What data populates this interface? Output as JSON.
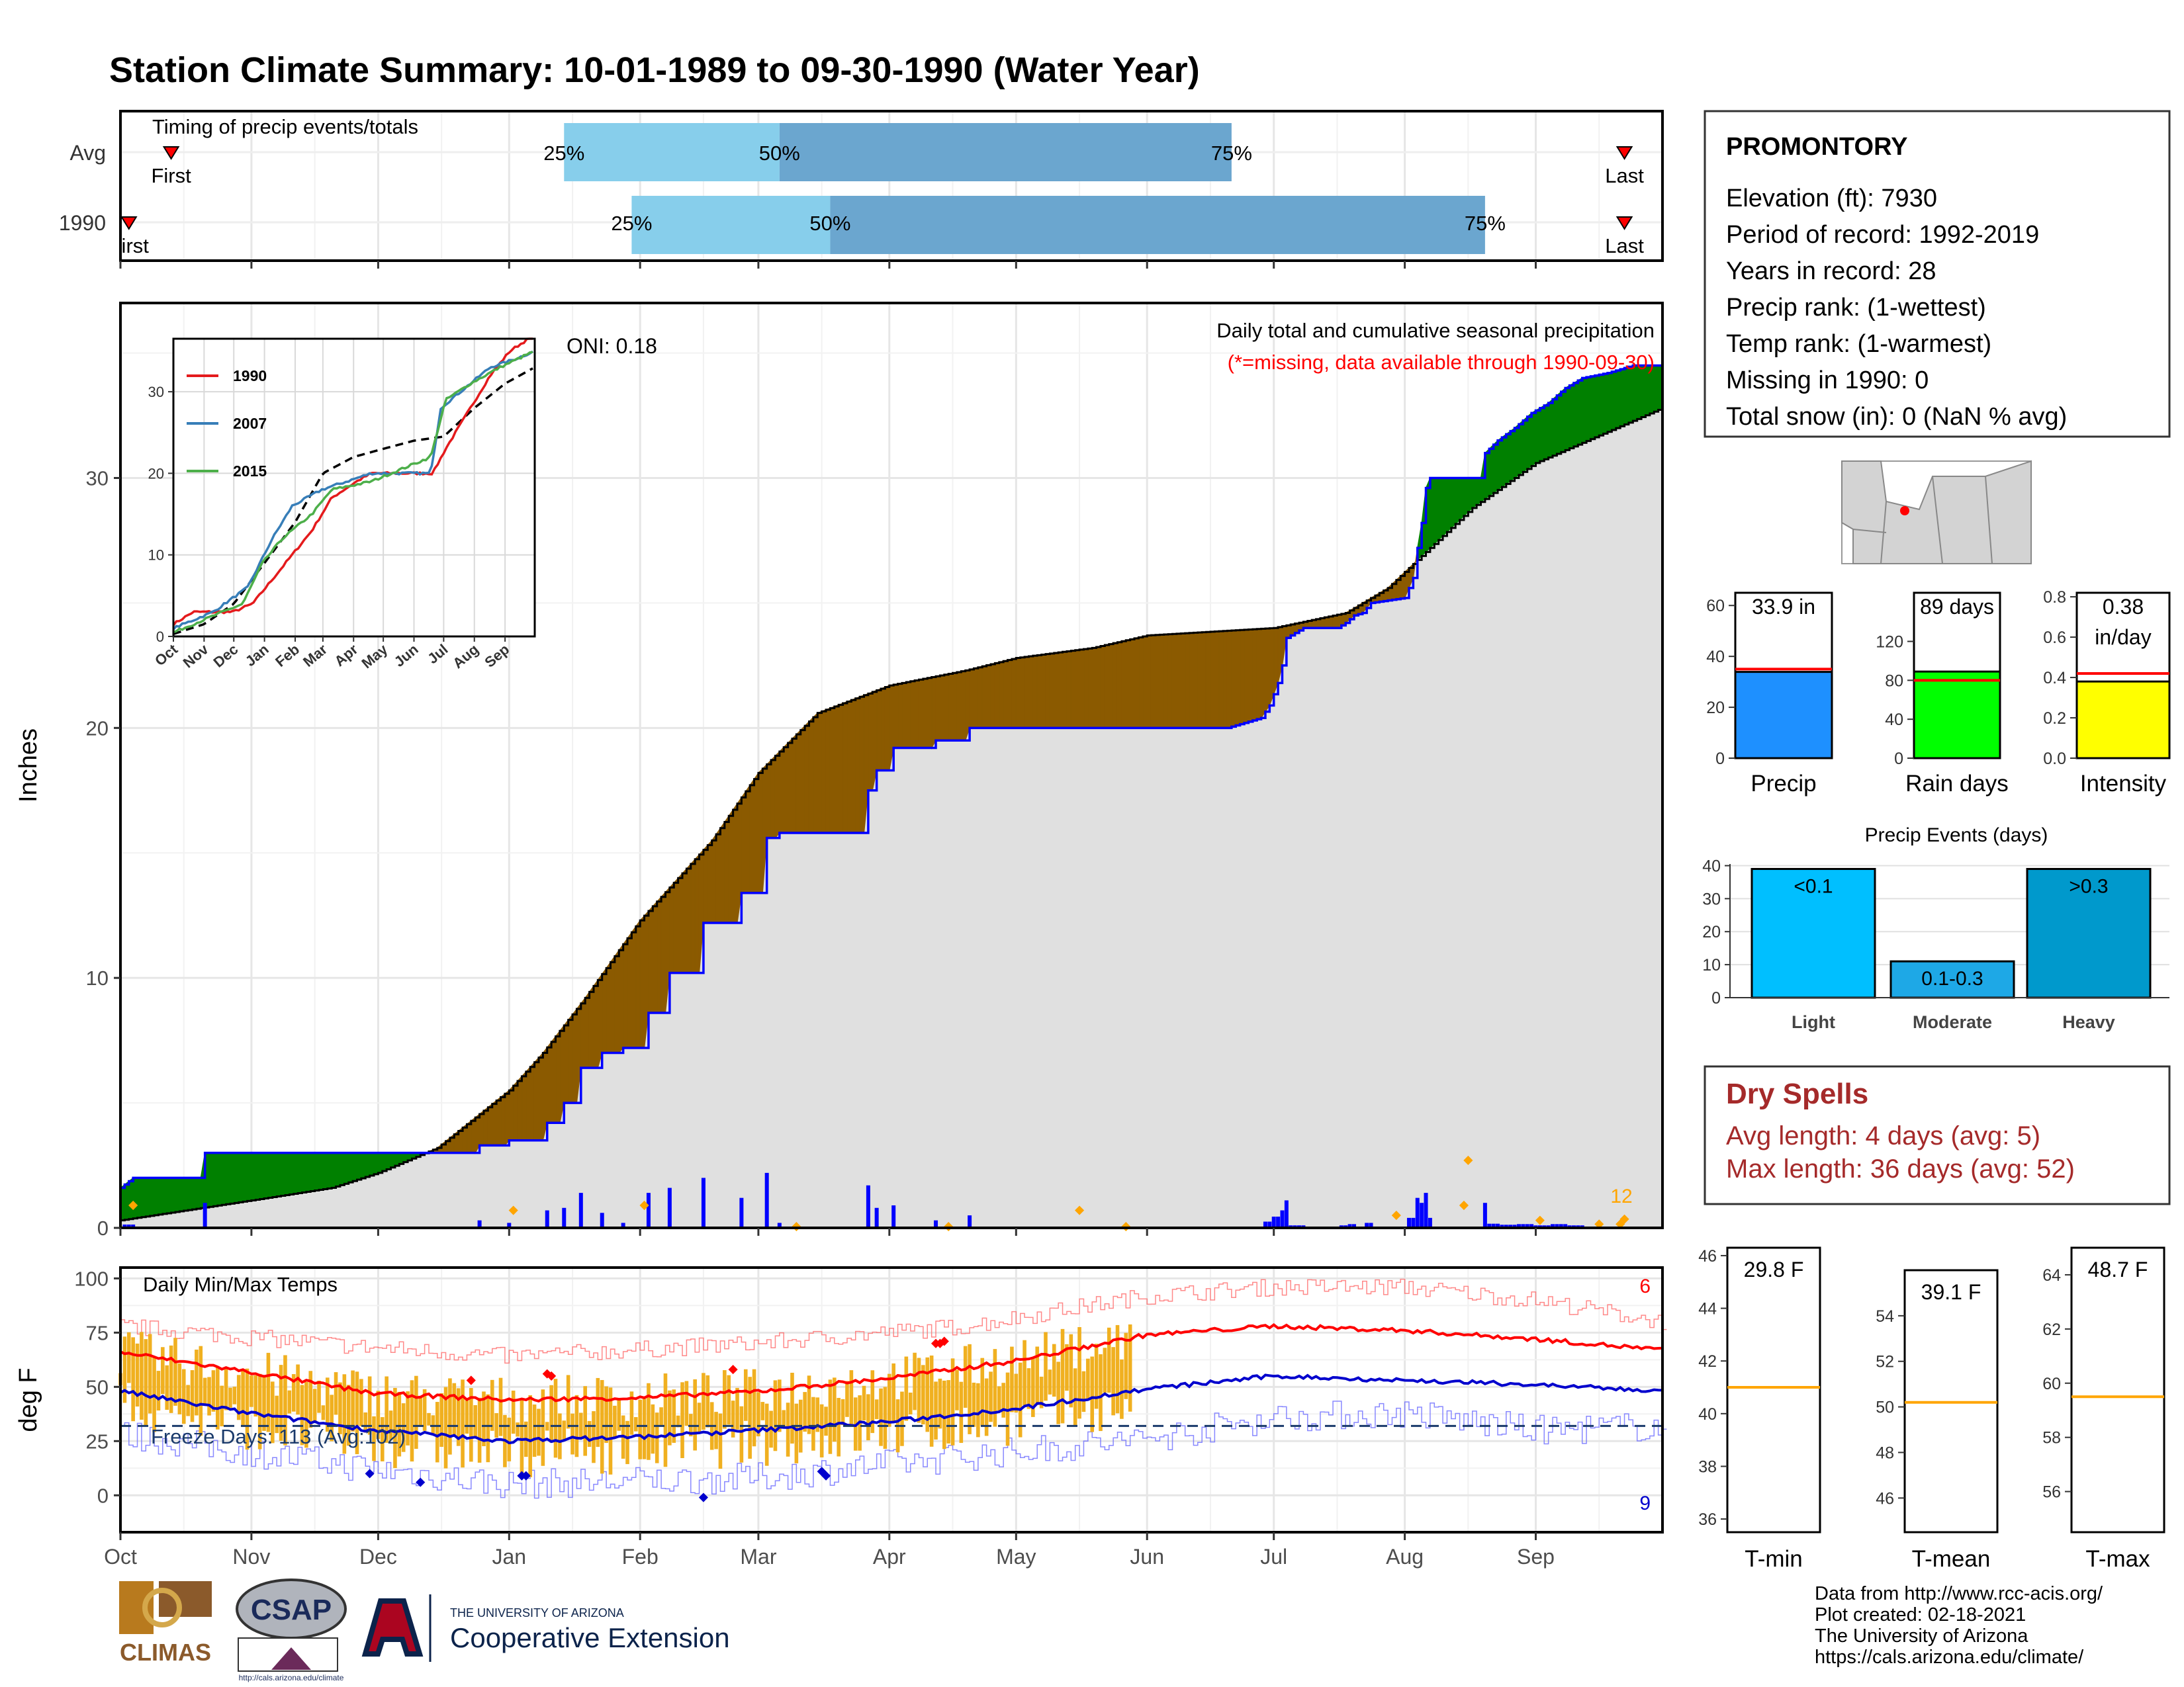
{
  "page": {
    "title": "Station Climate Summary: 10-01-1989 to 09-30-1990 (Water Year)",
    "title_color": "#8b1a00"
  },
  "months": [
    "Oct",
    "Nov",
    "Dec",
    "Jan",
    "Feb",
    "Mar",
    "Apr",
    "May",
    "Jun",
    "Jul",
    "Aug",
    "Sep"
  ],
  "timing": {
    "label": "Timing of precip events/totals",
    "rows": [
      {
        "name": "Avg",
        "q25": "25%",
        "q50": "50%",
        "q75": "75%",
        "first": "First",
        "last": "Last",
        "first_day": 12,
        "q25_day": 105,
        "q50_day": 156,
        "q75_day": 263,
        "last_day": 356
      },
      {
        "name": "1990",
        "q25": "25%",
        "q50": "50%",
        "q75": "75%",
        "first": "First",
        "last": "Last",
        "first_day": 2,
        "q25_day": 121,
        "q50_day": 168,
        "q75_day": 323,
        "last_day": 356
      }
    ]
  },
  "precip": {
    "ylabel": "Inches",
    "yticks": [
      0,
      10,
      20,
      30
    ],
    "ylim": [
      0,
      37
    ],
    "caption1": "Daily total and cumulative seasonal precipitation",
    "caption2": "(*=missing, data available through 1990-09-30)",
    "oni": "ONI: 0.18",
    "count_label": "12",
    "colors": {
      "above": "#008000",
      "below": "#8b5a00",
      "avg_fill": "#e0e0e0",
      "bars": "#0000ff",
      "extreme": "#ffa500"
    }
  },
  "inset": {
    "yticks": [
      0,
      10,
      20,
      30
    ],
    "months": [
      "Oct",
      "Nov",
      "Dec",
      "Jan",
      "Feb",
      "Mar",
      "Apr",
      "May",
      "Jun",
      "Jul",
      "Aug",
      "Sep"
    ],
    "legend": [
      {
        "name": "1990",
        "color": "#e41a1c"
      },
      {
        "name": "2007",
        "color": "#377eb8"
      },
      {
        "name": "2015",
        "color": "#4daf4a"
      }
    ]
  },
  "temp": {
    "ylabel": "deg F",
    "yticks": [
      0,
      25,
      50,
      75,
      100
    ],
    "label": "Daily Min/Max Temps",
    "freeze": "Freeze Days: 113 (Avg:102)",
    "count_high": "6",
    "count_low": "9"
  },
  "station": {
    "name": "PROMONTORY",
    "lines": [
      "Elevation (ft): 7930",
      "Period of record: 1992-2019",
      "Years in record: 28",
      "Precip rank:  (1-wettest)",
      "Temp rank:  (1-warmest)",
      "Missing in 1990: 0",
      "Total snow (in): 0 (NaN % avg)"
    ]
  },
  "mini_bars": [
    {
      "title": "Precip",
      "value_label": "33.9 in",
      "value": 33.9,
      "avg": 35,
      "ymax": 65,
      "yticks": [
        0,
        20,
        40,
        60
      ],
      "color": "#1e90ff"
    },
    {
      "title": "Rain days",
      "value_label": "89 days",
      "value": 89,
      "avg": 80,
      "ymax": 170,
      "yticks": [
        0,
        40,
        80,
        120
      ],
      "color": "#00ff00"
    },
    {
      "title": "Intensity",
      "value_label": "0.38",
      "value_label2": "in/day",
      "value": 0.38,
      "avg": 0.42,
      "ymax": 0.82,
      "yticks": [
        "0.0",
        "0.2",
        "0.4",
        "0.6",
        "0.8"
      ],
      "color": "#ffff00"
    }
  ],
  "events": {
    "title": "Precip Events (days)",
    "yticks": [
      0,
      10,
      20,
      30,
      40
    ],
    "bars": [
      {
        "cat": "Light",
        "label": "<0.1",
        "value": 39,
        "color": "#00bfff"
      },
      {
        "cat": "Moderate",
        "label": "0.1-0.3",
        "value": 11,
        "color": "#1ea8e6"
      },
      {
        "cat": "Heavy",
        "label": ">0.3",
        "value": 39,
        "color": "#0099cc"
      }
    ]
  },
  "dry": {
    "title": "Dry Spells",
    "avg": "Avg length: 4 days (avg: 5)",
    "max": "Max length: 36 days (avg: 52)",
    "color": "#a52a2a"
  },
  "tmeans": [
    {
      "title": "T-min",
      "value_label": "29.8 F",
      "avg": 41,
      "ylim": [
        35.5,
        46.3
      ],
      "yticks": [
        36,
        38,
        40,
        42,
        44,
        46
      ]
    },
    {
      "title": "T-mean",
      "value_label": "39.1 F",
      "avg": 50.2,
      "ylim": [
        44.5,
        56
      ],
      "yticks": [
        46,
        48,
        50,
        52,
        54
      ]
    },
    {
      "title": "T-max",
      "value_label": "48.7 F",
      "avg": 59.5,
      "ylim": [
        54.5,
        65
      ],
      "yticks": [
        56,
        58,
        60,
        62,
        64
      ]
    }
  ],
  "credits": [
    "Data from http://www.rcc-acis.org/",
    "Plot created: 02-18-2021",
    "The University of Arizona",
    "https://cals.arizona.edu/climate/"
  ],
  "logos": {
    "climas": "CLIMAS",
    "csap": "CSAP",
    "csap_url": "http://cals.arizona.edu/climate",
    "ua_small": "THE UNIVERSITY OF ARIZONA",
    "ua_big": "Cooperative Extension"
  }
}
